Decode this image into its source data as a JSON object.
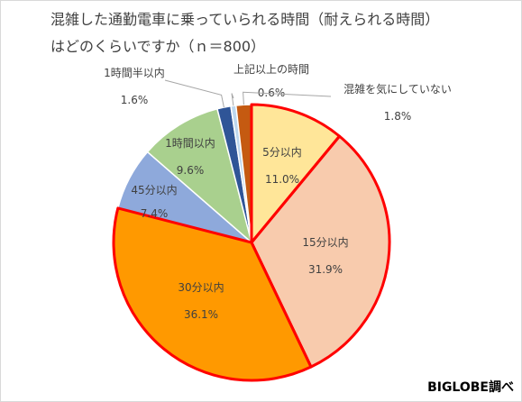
{
  "chart_data": {
    "type": "pie",
    "title": "混雑した通勤電車に乗っていられる時間（耐えられる時間）",
    "subtitle": "はどのくらいですか（ｎ＝800）",
    "slices": [
      {
        "label": "5分以内",
        "value": 11.0,
        "value_label": "11.0%",
        "color": "#FFE699"
      },
      {
        "label": "15分以内",
        "value": 31.9,
        "value_label": "31.9%",
        "color": "#F8CBAD"
      },
      {
        "label": "30分以内",
        "value": 36.1,
        "value_label": "36.1%",
        "color": "#FF9900"
      },
      {
        "label": "45分以内",
        "value": 7.4,
        "value_label": "7.4%",
        "color": "#8EA9DB"
      },
      {
        "label": "1時間以内",
        "value": 9.6,
        "value_label": "9.6%",
        "color": "#A9D08E"
      },
      {
        "label": "1時間半以内",
        "value": 1.6,
        "value_label": "1.6%",
        "color": "#2F5597"
      },
      {
        "label": "上記以上の時間",
        "value": 0.6,
        "value_label": "0.6%",
        "color": "#BDD7EE"
      },
      {
        "label": "混雑を気にしていない",
        "value": 1.8,
        "value_label": "1.8%",
        "color": "#C55A11"
      }
    ],
    "highlighted": [
      "5分以内",
      "15分以内",
      "30分以内"
    ],
    "highlight_color": "#FF0000"
  },
  "credit": "BIGLOBE調べ"
}
